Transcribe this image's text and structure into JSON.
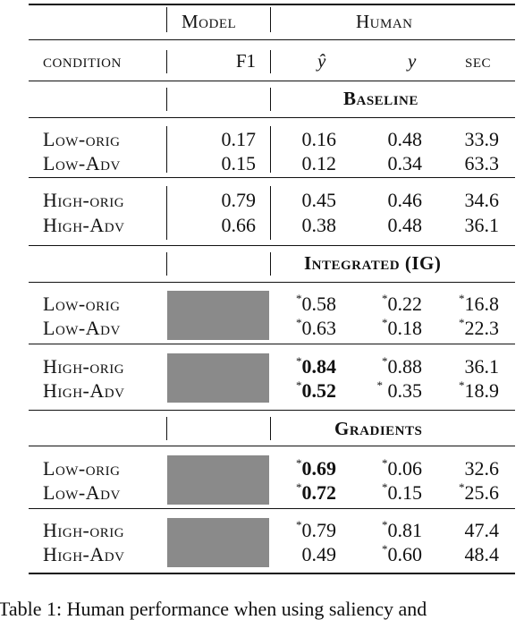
{
  "header": {
    "group_model": "Model",
    "group_human": "Human",
    "col_condition": "condition",
    "col_f1": "F1",
    "col_yhat": "ŷ",
    "col_y": "y",
    "col_sec": "sec"
  },
  "sections": [
    {
      "title": "Baseline",
      "rows": [
        {
          "condition": "Low-orig",
          "f1": "0.17",
          "yhat": "0.16",
          "y": "0.48",
          "sec": "33.9"
        },
        {
          "condition": "Low-Adv",
          "f1": "0.15",
          "yhat": "0.12",
          "y": "0.34",
          "sec": "63.3"
        },
        {
          "condition": "High-orig",
          "f1": "0.79",
          "yhat": "0.45",
          "y": "0.46",
          "sec": "34.6"
        },
        {
          "condition": "High-Adv",
          "f1": "0.66",
          "yhat": "0.38",
          "y": "0.48",
          "sec": "36.1"
        }
      ]
    },
    {
      "title": "Integrated (IG)",
      "rows": [
        {
          "condition": "Low-orig",
          "yhat_mark": "*",
          "yhat": "0.58",
          "y_mark": "*",
          "y": "0.22",
          "sec_mark": "*",
          "sec": "16.8"
        },
        {
          "condition": "Low-Adv",
          "yhat_mark": "*",
          "yhat": "0.63",
          "y_mark": "*",
          "y": "0.18",
          "sec_mark": "*",
          "sec": "22.3"
        },
        {
          "condition": "High-orig",
          "yhat_mark": "*",
          "yhat": "0.84",
          "y_mark": "*",
          "y": "0.88",
          "sec_mark": "",
          "sec": "36.1"
        },
        {
          "condition": "High-Adv",
          "yhat_mark": "*",
          "yhat": "0.52",
          "y_mark": "*",
          "y": "0.35",
          "sec_mark": "*",
          "sec": "18.9"
        }
      ]
    },
    {
      "title": "Gradients",
      "rows": [
        {
          "condition": "Low-orig",
          "yhat_mark": "*",
          "yhat": "0.69",
          "y_mark": "*",
          "y": "0.06",
          "sec_mark": "",
          "sec": "32.6"
        },
        {
          "condition": "Low-Adv",
          "yhat_mark": "*",
          "yhat": "0.72",
          "y_mark": "*",
          "y": "0.15",
          "sec_mark": "*",
          "sec": "25.6"
        },
        {
          "condition": "High-orig",
          "yhat_mark": "*",
          "yhat": "0.79",
          "y_mark": "*",
          "y": "0.81",
          "sec_mark": "",
          "sec": "47.4"
        },
        {
          "condition": "High-Adv",
          "yhat_mark": "",
          "yhat": "0.49",
          "y_mark": "*",
          "y": "0.60",
          "sec_mark": "",
          "sec": "48.4"
        }
      ]
    }
  ],
  "caption_fragment": "Table 1:    Human performance when using saliency and"
}
